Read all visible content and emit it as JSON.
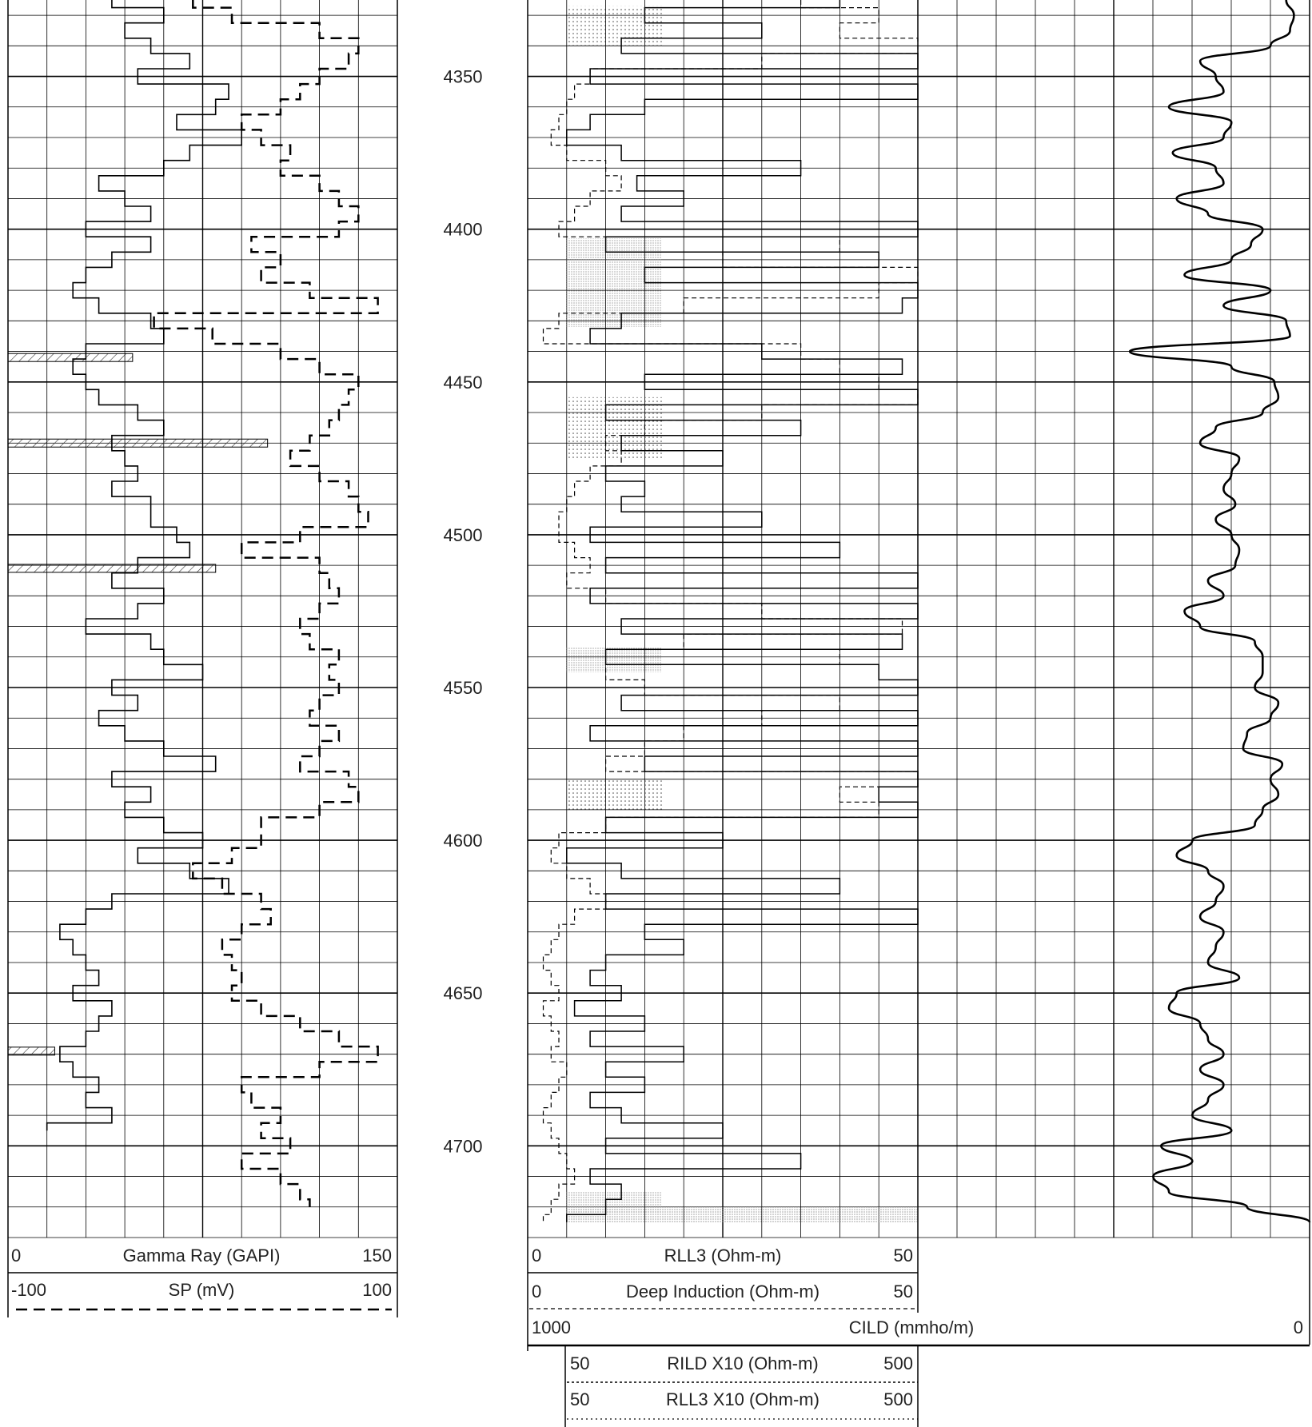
{
  "chart_data": {
    "type": "line",
    "title": "",
    "depth_axis": {
      "ticks": [
        4350,
        4400,
        4450,
        4500,
        4550,
        4600,
        4650,
        4700
      ],
      "ylim": [
        4325,
        4730
      ]
    },
    "tracks": [
      {
        "id": "track1",
        "curves": [
          {
            "name": "Gamma Ray (GAPI)",
            "min_label": "0",
            "max_label": "150",
            "range": [
              0,
              150
            ],
            "style": "solid",
            "depths": [
              4325,
              4330,
              4335,
              4340,
              4345,
              4350,
              4355,
              4360,
              4365,
              4370,
              4375,
              4380,
              4385,
              4390,
              4395,
              4400,
              4405,
              4410,
              4415,
              4420,
              4425,
              4430,
              4435,
              4440,
              4445,
              4450,
              4455,
              4460,
              4465,
              4470,
              4475,
              4480,
              4485,
              4490,
              4495,
              4500,
              4505,
              4510,
              4515,
              4520,
              4525,
              4530,
              4535,
              4540,
              4545,
              4550,
              4555,
              4560,
              4565,
              4570,
              4575,
              4580,
              4585,
              4590,
              4595,
              4600,
              4605,
              4610,
              4615,
              4620,
              4625,
              4630,
              4635,
              4640,
              4645,
              4650,
              4655,
              4660,
              4665,
              4670,
              4675,
              4680,
              4685,
              4690,
              4695
            ],
            "values": [
              40,
              60,
              45,
              55,
              70,
              50,
              85,
              80,
              65,
              90,
              70,
              60,
              35,
              45,
              55,
              30,
              55,
              40,
              30,
              25,
              35,
              55,
              60,
              30,
              25,
              30,
              35,
              50,
              60,
              40,
              45,
              50,
              40,
              55,
              55,
              65,
              70,
              50,
              40,
              60,
              50,
              30,
              55,
              60,
              75,
              40,
              50,
              35,
              45,
              60,
              80,
              40,
              55,
              45,
              60,
              75,
              50,
              70,
              85,
              40,
              30,
              20,
              25,
              30,
              35,
              25,
              40,
              35,
              30,
              20,
              25,
              35,
              30,
              40,
              15
            ]
          },
          {
            "name": "SP (mV)",
            "min_label": "-100",
            "max_label": "100",
            "range": [
              -100,
              100
            ],
            "style": "dashed",
            "depths": [
              4325,
              4330,
              4335,
              4340,
              4345,
              4350,
              4355,
              4360,
              4365,
              4370,
              4375,
              4380,
              4385,
              4390,
              4395,
              4400,
              4405,
              4410,
              4415,
              4420,
              4425,
              4430,
              4435,
              4440,
              4445,
              4450,
              4455,
              4460,
              4465,
              4470,
              4475,
              4480,
              4485,
              4490,
              4495,
              4500,
              4505,
              4510,
              4515,
              4520,
              4525,
              4530,
              4535,
              4540,
              4545,
              4550,
              4555,
              4560,
              4565,
              4570,
              4575,
              4580,
              4585,
              4590,
              4595,
              4600,
              4605,
              4610,
              4615,
              4620,
              4625,
              4630,
              4635,
              4640,
              4645,
              4650,
              4655,
              4660,
              4665,
              4670,
              4675,
              4680,
              4685,
              4690,
              4695,
              4700,
              4705,
              4710,
              4715,
              4720
            ],
            "values": [
              -5,
              15,
              60,
              80,
              75,
              60,
              50,
              40,
              20,
              30,
              45,
              40,
              60,
              70,
              80,
              70,
              25,
              40,
              30,
              55,
              90,
              -25,
              5,
              40,
              60,
              80,
              75,
              70,
              65,
              55,
              45,
              60,
              75,
              80,
              85,
              50,
              20,
              60,
              65,
              70,
              60,
              50,
              55,
              70,
              65,
              70,
              60,
              55,
              70,
              60,
              50,
              75,
              80,
              60,
              30,
              30,
              15,
              -5,
              10,
              30,
              35,
              20,
              10,
              15,
              20,
              15,
              30,
              50,
              70,
              90,
              60,
              20,
              25,
              40,
              30,
              45,
              20,
              40,
              50,
              55
            ]
          }
        ]
      },
      {
        "id": "track3",
        "curves": [
          {
            "name": "RLL3 (Ohm-m)",
            "min_label": "0",
            "max_label": "50",
            "range": [
              0,
              50
            ],
            "style": "solid",
            "depths": [
              4325,
              4330,
              4335,
              4340,
              4345,
              4350,
              4355,
              4360,
              4365,
              4370,
              4375,
              4380,
              4385,
              4390,
              4395,
              4400,
              4405,
              4410,
              4415,
              4420,
              4425,
              4430,
              4435,
              4440,
              4445,
              4450,
              4455,
              4460,
              4465,
              4470,
              4475,
              4480,
              4485,
              4490,
              4495,
              4500,
              4505,
              4510,
              4515,
              4520,
              4525,
              4530,
              4535,
              4540,
              4545,
              4550,
              4555,
              4560,
              4565,
              4570,
              4575,
              4580,
              4585,
              4590,
              4595,
              4600,
              4605,
              4610,
              4615,
              4620,
              4625,
              4630,
              4635,
              4640,
              4645,
              4650,
              4655,
              4660,
              4665,
              4670,
              4675,
              4680,
              4685,
              4690,
              4695,
              4700,
              4705,
              4710,
              4715,
              4720,
              4725
            ],
            "values": [
              40,
              15,
              30,
              12,
              50,
              8,
              50,
              15,
              8,
              5,
              12,
              35,
              14,
              20,
              12,
              50,
              10,
              45,
              15,
              50,
              48,
              12,
              8,
              30,
              48,
              15,
              50,
              10,
              35,
              12,
              25,
              10,
              15,
              12,
              30,
              8,
              40,
              10,
              50,
              8,
              50,
              12,
              48,
              10,
              45,
              50,
              12,
              50,
              8,
              50,
              15,
              50,
              45,
              50,
              10,
              25,
              5,
              12,
              40,
              10,
              50,
              15,
              20,
              10,
              8,
              12,
              6,
              15,
              8,
              20,
              10,
              15,
              8,
              12,
              25,
              10,
              35,
              8,
              12,
              10,
              5
            ]
          },
          {
            "name": "Deep Induction (Ohm-m)",
            "min_label": "0",
            "max_label": "50",
            "range": [
              0,
              50
            ],
            "style": "short-dashed",
            "depths": [
              4325,
              4330,
              4335,
              4340,
              4345,
              4350,
              4355,
              4360,
              4365,
              4370,
              4375,
              4380,
              4385,
              4390,
              4395,
              4400,
              4405,
              4410,
              4415,
              4420,
              4425,
              4430,
              4435,
              4440,
              4445,
              4450,
              4455,
              4460,
              4465,
              4470,
              4475,
              4480,
              4485,
              4490,
              4495,
              4500,
              4505,
              4510,
              4515,
              4520,
              4525,
              4530,
              4535,
              4540,
              4545,
              4550,
              4555,
              4560,
              4565,
              4570,
              4575,
              4580,
              4585,
              4590,
              4595,
              4600,
              4605,
              4610,
              4615,
              4620,
              4625,
              4630,
              4635,
              4640,
              4645,
              4650,
              4655,
              4660,
              4665,
              4670,
              4675,
              4680,
              4685,
              4690,
              4695,
              4700,
              4705,
              4710,
              4715,
              4720,
              4725
            ],
            "values": [
              35,
              45,
              40,
              50,
              30,
              8,
              6,
              5,
              4,
              3,
              5,
              10,
              12,
              8,
              6,
              4,
              40,
              25,
              50,
              45,
              20,
              4,
              2,
              35,
              40,
              45,
              50,
              30,
              15,
              10,
              12,
              8,
              6,
              5,
              4,
              4,
              6,
              8,
              5,
              10,
              30,
              48,
              20,
              40,
              10,
              15,
              40,
              30,
              20,
              15,
              10,
              50,
              40,
              45,
              10,
              4,
              3,
              5,
              8,
              10,
              6,
              4,
              3,
              2,
              3,
              4,
              2,
              3,
              4,
              3,
              5,
              4,
              3,
              2,
              3,
              4,
              5,
              6,
              4,
              3,
              2
            ]
          },
          {
            "name": "CILD (mmho/m)",
            "min_label": "1000",
            "max_label": "0",
            "range": [
              1000,
              0
            ],
            "style": "thick-solid",
            "depths": [
              4325,
              4330,
              4335,
              4340,
              4345,
              4350,
              4355,
              4360,
              4365,
              4370,
              4375,
              4380,
              4385,
              4390,
              4395,
              4400,
              4405,
              4410,
              4415,
              4420,
              4425,
              4430,
              4435,
              4440,
              4445,
              4450,
              4455,
              4460,
              4465,
              4470,
              4475,
              4480,
              4485,
              4490,
              4495,
              4500,
              4505,
              4510,
              4515,
              4520,
              4525,
              4530,
              4535,
              4540,
              4545,
              4550,
              4555,
              4560,
              4565,
              4570,
              4575,
              4580,
              4585,
              4590,
              4595,
              4600,
              4605,
              4610,
              4615,
              4620,
              4625,
              4630,
              4635,
              4640,
              4645,
              4650,
              4655,
              4660,
              4665,
              4670,
              4675,
              4680,
              4685,
              4690,
              4695,
              4700,
              4705,
              4710,
              4715,
              4720,
              4725
            ],
            "values": [
              30,
              20,
              25,
              50,
              140,
              120,
              110,
              180,
              100,
              110,
              175,
              120,
              110,
              170,
              130,
              60,
              75,
              100,
              160,
              50,
              110,
              30,
              25,
              230,
              100,
              45,
              40,
              60,
              120,
              140,
              90,
              100,
              110,
              95,
              120,
              100,
              90,
              95,
              130,
              110,
              160,
              140,
              70,
              60,
              60,
              70,
              40,
              50,
              80,
              85,
              35,
              50,
              40,
              60,
              70,
              150,
              170,
              130,
              110,
              120,
              140,
              110,
              120,
              130,
              90,
              170,
              180,
              140,
              130,
              110,
              140,
              110,
              130,
              150,
              100,
              190,
              150,
              200,
              180,
              80,
              0
            ]
          }
        ]
      },
      {
        "id": "track3-backup",
        "curves": [
          {
            "name": "RILD X10 (Ohm-m)",
            "min_label": "50",
            "max_label": "500",
            "range": [
              50,
              500
            ],
            "style": "dotted-fill"
          },
          {
            "name": "RLL3 X10 (Ohm-m)",
            "min_label": "50",
            "max_label": "500",
            "range": [
              50,
              500
            ],
            "style": "stipple-fill"
          }
        ]
      }
    ],
    "lithology_markers": [
      {
        "depth": 4442,
        "pattern": "hatch",
        "extent": 48
      },
      {
        "depth": 4470,
        "pattern": "hatch",
        "extent": 100
      },
      {
        "depth": 4511,
        "pattern": "hatch",
        "extent": 80
      },
      {
        "depth": 4669,
        "pattern": "hatch",
        "extent": 18
      }
    ],
    "grid": true,
    "legend_placement": "bottom"
  }
}
